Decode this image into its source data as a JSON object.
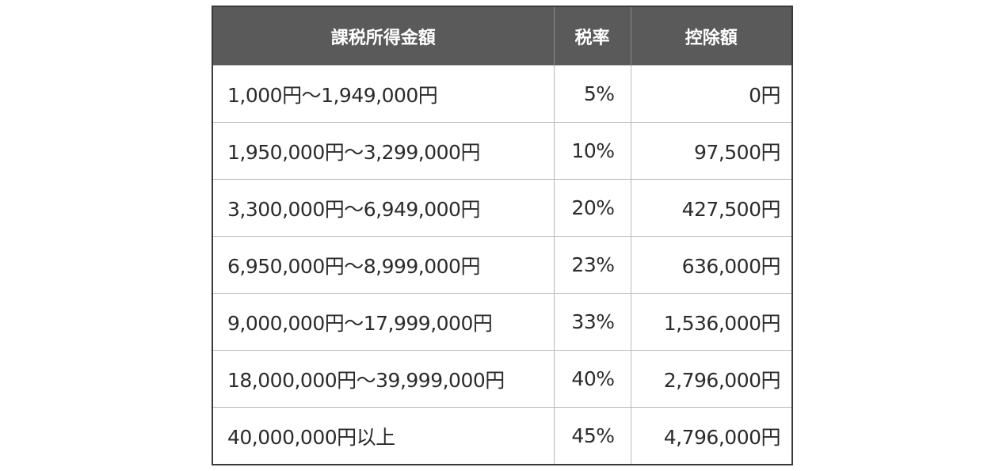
{
  "table": {
    "headers": {
      "income": "課税所得金額",
      "rate": "税率",
      "deduction": "控除額"
    },
    "rows": [
      {
        "income": "1,000円〜1,949,000円",
        "rate": "5%",
        "deduction": "0円"
      },
      {
        "income": "1,950,000円〜3,299,000円",
        "rate": "10%",
        "deduction": "97,500円"
      },
      {
        "income": "3,300,000円〜6,949,000円",
        "rate": "20%",
        "deduction": "427,500円"
      },
      {
        "income": "6,950,000円〜8,999,000円",
        "rate": "23%",
        "deduction": "636,000円"
      },
      {
        "income": "9,000,000円〜17,999,000円",
        "rate": "33%",
        "deduction": "1,536,000円"
      },
      {
        "income": "18,000,000円〜39,999,000円",
        "rate": "40%",
        "deduction": "2,796,000円"
      },
      {
        "income": "40,000,000円以上",
        "rate": "45%",
        "deduction": "4,796,000円"
      }
    ]
  }
}
